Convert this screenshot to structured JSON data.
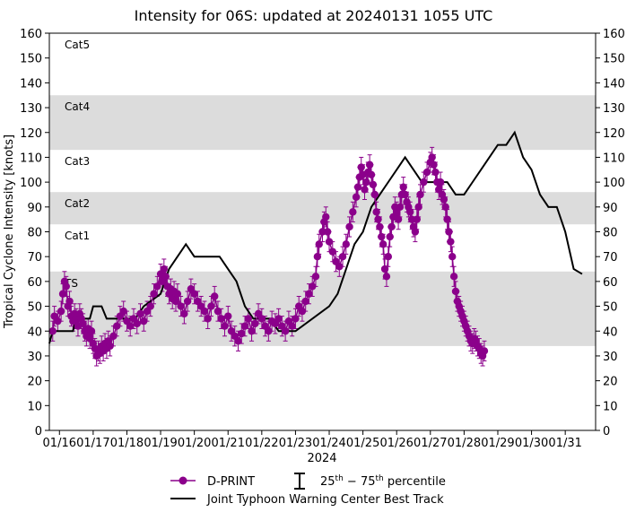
{
  "chart_data": {
    "type": "scatter",
    "title": "Intensity for 06S: updated at 20240131 1055 UTC",
    "ylabel": "Tropical Cyclone Intensity [knots]",
    "xlabel": "2024",
    "ylim": [
      0,
      160
    ],
    "yticks": [
      0,
      10,
      20,
      30,
      40,
      50,
      60,
      70,
      80,
      90,
      100,
      110,
      120,
      130,
      140,
      150,
      160
    ],
    "xlim": [
      15.2,
      31.4
    ],
    "xticks": [
      {
        "day": 15.5,
        "label": "01/16"
      },
      {
        "day": 16.5,
        "label": "01/17"
      },
      {
        "day": 17.5,
        "label": "01/18"
      },
      {
        "day": 18.5,
        "label": "01/19"
      },
      {
        "day": 19.5,
        "label": "01/20"
      },
      {
        "day": 20.5,
        "label": "01/21"
      },
      {
        "day": 21.5,
        "label": "01/22"
      },
      {
        "day": 22.5,
        "label": "01/23"
      },
      {
        "day": 23.5,
        "label": "01/24"
      },
      {
        "day": 24.5,
        "label": "01/25"
      },
      {
        "day": 25.5,
        "label": "01/26"
      },
      {
        "day": 26.5,
        "label": "01/27"
      },
      {
        "day": 27.5,
        "label": "01/28"
      },
      {
        "day": 28.5,
        "label": "01/29"
      },
      {
        "day": 29.5,
        "label": "01/30"
      },
      {
        "day": 30.5,
        "label": "01/31"
      }
    ],
    "grid": false,
    "category_bands": [
      {
        "label": "Cat5",
        "low": 135,
        "high": 160,
        "shaded": false
      },
      {
        "label": "Cat4",
        "low": 113,
        "high": 135,
        "shaded": true
      },
      {
        "label": "Cat3",
        "low": 96,
        "high": 113,
        "shaded": false
      },
      {
        "label": "Cat2",
        "low": 83,
        "high": 96,
        "shaded": true
      },
      {
        "label": "Cat1",
        "low": 64,
        "high": 83,
        "shaded": false
      },
      {
        "label": "TS",
        "low": 34,
        "high": 64,
        "shaded": true
      }
    ],
    "band_color": "#dcdcdc",
    "series": [
      {
        "name": "D-PRINT",
        "color": "#8b008b",
        "marker": "circle",
        "errorbars": "25th-75th percentile",
        "points": [
          [
            15.3,
            40
          ],
          [
            15.35,
            46
          ],
          [
            15.45,
            44
          ],
          [
            15.55,
            48
          ],
          [
            15.6,
            55
          ],
          [
            15.65,
            60
          ],
          [
            15.7,
            58
          ],
          [
            15.75,
            50
          ],
          [
            15.8,
            52
          ],
          [
            15.85,
            46
          ],
          [
            15.9,
            44
          ],
          [
            15.95,
            47
          ],
          [
            16.0,
            45
          ],
          [
            16.05,
            42
          ],
          [
            16.1,
            47
          ],
          [
            16.15,
            45
          ],
          [
            16.2,
            43
          ],
          [
            16.25,
            40
          ],
          [
            16.3,
            38
          ],
          [
            16.35,
            41
          ],
          [
            16.4,
            37
          ],
          [
            16.45,
            40
          ],
          [
            16.5,
            35
          ],
          [
            16.55,
            33
          ],
          [
            16.6,
            30
          ],
          [
            16.65,
            32
          ],
          [
            16.7,
            31
          ],
          [
            16.75,
            34
          ],
          [
            16.8,
            32
          ],
          [
            16.85,
            35
          ],
          [
            16.9,
            33
          ],
          [
            16.95,
            36
          ],
          [
            17.0,
            34
          ],
          [
            17.1,
            38
          ],
          [
            17.2,
            42
          ],
          [
            17.3,
            46
          ],
          [
            17.4,
            48
          ],
          [
            17.5,
            44
          ],
          [
            17.6,
            42
          ],
          [
            17.7,
            45
          ],
          [
            17.8,
            43
          ],
          [
            17.9,
            47
          ],
          [
            18.0,
            44
          ],
          [
            18.1,
            48
          ],
          [
            18.2,
            50
          ],
          [
            18.3,
            55
          ],
          [
            18.4,
            58
          ],
          [
            18.5,
            63
          ],
          [
            18.55,
            60
          ],
          [
            18.6,
            65
          ],
          [
            18.65,
            62
          ],
          [
            18.7,
            58
          ],
          [
            18.75,
            55
          ],
          [
            18.8,
            57
          ],
          [
            18.85,
            53
          ],
          [
            18.9,
            56
          ],
          [
            18.95,
            52
          ],
          [
            19.0,
            55
          ],
          [
            19.1,
            50
          ],
          [
            19.2,
            47
          ],
          [
            19.3,
            52
          ],
          [
            19.4,
            57
          ],
          [
            19.5,
            55
          ],
          [
            19.6,
            52
          ],
          [
            19.7,
            50
          ],
          [
            19.8,
            48
          ],
          [
            19.9,
            45
          ],
          [
            20.0,
            50
          ],
          [
            20.1,
            54
          ],
          [
            20.2,
            48
          ],
          [
            20.3,
            45
          ],
          [
            20.4,
            42
          ],
          [
            20.5,
            46
          ],
          [
            20.6,
            40
          ],
          [
            20.7,
            38
          ],
          [
            20.8,
            36
          ],
          [
            20.9,
            39
          ],
          [
            21.0,
            42
          ],
          [
            21.1,
            45
          ],
          [
            21.2,
            40
          ],
          [
            21.3,
            43
          ],
          [
            21.4,
            47
          ],
          [
            21.5,
            45
          ],
          [
            21.6,
            42
          ],
          [
            21.7,
            40
          ],
          [
            21.8,
            44
          ],
          [
            21.9,
            43
          ],
          [
            22.0,
            45
          ],
          [
            22.1,
            42
          ],
          [
            22.2,
            40
          ],
          [
            22.3,
            44
          ],
          [
            22.4,
            42
          ],
          [
            22.5,
            45
          ],
          [
            22.6,
            50
          ],
          [
            22.7,
            48
          ],
          [
            22.8,
            52
          ],
          [
            22.9,
            55
          ],
          [
            23.0,
            58
          ],
          [
            23.1,
            62
          ],
          [
            23.15,
            70
          ],
          [
            23.2,
            75
          ],
          [
            23.3,
            80
          ],
          [
            23.35,
            84
          ],
          [
            23.4,
            86
          ],
          [
            23.45,
            80
          ],
          [
            23.5,
            76
          ],
          [
            23.6,
            72
          ],
          [
            23.7,
            68
          ],
          [
            23.8,
            66
          ],
          [
            23.9,
            70
          ],
          [
            24.0,
            75
          ],
          [
            24.1,
            82
          ],
          [
            24.2,
            88
          ],
          [
            24.3,
            94
          ],
          [
            24.35,
            98
          ],
          [
            24.4,
            102
          ],
          [
            24.45,
            106
          ],
          [
            24.5,
            103
          ],
          [
            24.55,
            97
          ],
          [
            24.6,
            100
          ],
          [
            24.65,
            104
          ],
          [
            24.7,
            107
          ],
          [
            24.75,
            103
          ],
          [
            24.8,
            99
          ],
          [
            24.85,
            95
          ],
          [
            24.9,
            88
          ],
          [
            24.95,
            85
          ],
          [
            25.0,
            82
          ],
          [
            25.05,
            78
          ],
          [
            25.1,
            75
          ],
          [
            25.15,
            65
          ],
          [
            25.2,
            62
          ],
          [
            25.25,
            70
          ],
          [
            25.3,
            78
          ],
          [
            25.35,
            82
          ],
          [
            25.4,
            86
          ],
          [
            25.45,
            90
          ],
          [
            25.5,
            88
          ],
          [
            25.55,
            85
          ],
          [
            25.6,
            90
          ],
          [
            25.65,
            95
          ],
          [
            25.7,
            98
          ],
          [
            25.75,
            95
          ],
          [
            25.8,
            92
          ],
          [
            25.85,
            90
          ],
          [
            25.9,
            88
          ],
          [
            25.95,
            85
          ],
          [
            26.0,
            82
          ],
          [
            26.05,
            80
          ],
          [
            26.1,
            85
          ],
          [
            26.15,
            90
          ],
          [
            26.2,
            95
          ],
          [
            26.3,
            100
          ],
          [
            26.4,
            104
          ],
          [
            26.5,
            108
          ],
          [
            26.55,
            110
          ],
          [
            26.6,
            107
          ],
          [
            26.65,
            104
          ],
          [
            26.7,
            100
          ],
          [
            26.75,
            97
          ],
          [
            26.8,
            100
          ],
          [
            26.85,
            95
          ],
          [
            26.9,
            93
          ],
          [
            26.95,
            90
          ],
          [
            27.0,
            85
          ],
          [
            27.05,
            80
          ],
          [
            27.1,
            76
          ],
          [
            27.15,
            70
          ],
          [
            27.2,
            62
          ],
          [
            27.25,
            56
          ],
          [
            27.3,
            52
          ],
          [
            27.35,
            50
          ],
          [
            27.4,
            48
          ],
          [
            27.45,
            46
          ],
          [
            27.5,
            44
          ],
          [
            27.55,
            42
          ],
          [
            27.6,
            40
          ],
          [
            27.65,
            38
          ],
          [
            27.7,
            36
          ],
          [
            27.75,
            35
          ],
          [
            27.8,
            37
          ],
          [
            27.85,
            36
          ],
          [
            27.9,
            34
          ],
          [
            27.95,
            33
          ],
          [
            28.0,
            31
          ],
          [
            28.05,
            30
          ],
          [
            28.1,
            32
          ]
        ]
      },
      {
        "name": "Joint Typhoon Warning Center Best Track",
        "color": "#000000",
        "marker": "line",
        "points": [
          [
            15.2,
            35
          ],
          [
            15.3,
            40
          ],
          [
            15.9,
            40
          ],
          [
            16.0,
            45
          ],
          [
            16.4,
            45
          ],
          [
            16.5,
            50
          ],
          [
            16.75,
            50
          ],
          [
            16.9,
            45
          ],
          [
            17.75,
            45
          ],
          [
            18.0,
            50
          ],
          [
            18.5,
            55
          ],
          [
            18.75,
            65
          ],
          [
            19.0,
            70
          ],
          [
            19.25,
            75
          ],
          [
            19.5,
            70
          ],
          [
            20.0,
            70
          ],
          [
            20.25,
            70
          ],
          [
            20.5,
            65
          ],
          [
            20.75,
            60
          ],
          [
            21.0,
            50
          ],
          [
            21.25,
            45
          ],
          [
            21.75,
            45
          ],
          [
            22.0,
            40
          ],
          [
            22.5,
            40
          ],
          [
            23.0,
            45
          ],
          [
            23.5,
            50
          ],
          [
            23.75,
            55
          ],
          [
            24.0,
            65
          ],
          [
            24.25,
            75
          ],
          [
            24.5,
            80
          ],
          [
            24.75,
            90
          ],
          [
            25.0,
            95
          ],
          [
            25.25,
            100
          ],
          [
            25.5,
            105
          ],
          [
            25.75,
            110
          ],
          [
            26.0,
            105
          ],
          [
            26.25,
            100
          ],
          [
            26.5,
            100
          ],
          [
            26.75,
            100
          ],
          [
            27.0,
            100
          ],
          [
            27.25,
            95
          ],
          [
            27.5,
            95
          ],
          [
            27.75,
            100
          ],
          [
            28.0,
            105
          ],
          [
            28.25,
            110
          ],
          [
            28.5,
            115
          ],
          [
            28.75,
            115
          ],
          [
            29.0,
            120
          ],
          [
            29.25,
            110
          ],
          [
            29.5,
            105
          ],
          [
            29.75,
            95
          ],
          [
            30.0,
            90
          ],
          [
            30.25,
            90
          ],
          [
            30.5,
            80
          ],
          [
            30.75,
            65
          ],
          [
            31.0,
            63
          ]
        ]
      }
    ]
  },
  "legend": {
    "dprint": "D-PRINT",
    "percentile_base_25": "25",
    "percentile_sup_25": "th",
    "percentile_dash": " − ",
    "percentile_base_75": "75",
    "percentile_sup_75": "th",
    "percentile_tail": " percentile",
    "jtwc": "Joint Typhoon Warning Center Best Track"
  }
}
